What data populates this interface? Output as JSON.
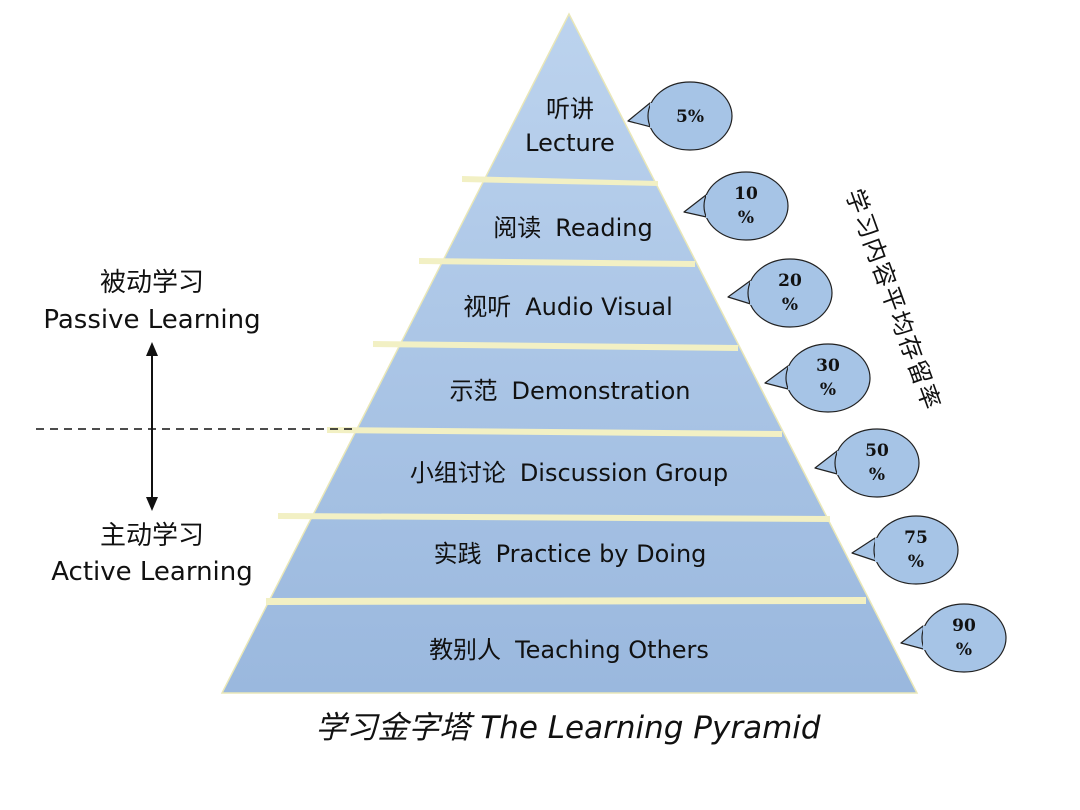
{
  "levels": [
    {
      "zh": "听讲",
      "en": "Lecture",
      "retention": "5%"
    },
    {
      "zh": "阅读",
      "en": "Reading",
      "retention": "10 %"
    },
    {
      "zh": "视听",
      "en": "Audio Visual",
      "retention": "20 %"
    },
    {
      "zh": "示范",
      "en": "Demonstration",
      "retention": "30 %"
    },
    {
      "zh": "小组讨论",
      "en": "Discussion Group",
      "retention": "50 %"
    },
    {
      "zh": "实践",
      "en": "Practice by Doing",
      "retention": "75 %"
    },
    {
      "zh": "教别人",
      "en": "Teaching Others",
      "retention": "90 %"
    }
  ],
  "side": {
    "passive_zh": "被动学习",
    "passive_en": "Passive Learning",
    "active_zh": "主动学习",
    "active_en": "Active Learning"
  },
  "retention_axis_label": "学习内容平均存留率",
  "title": "学习金字塔  The Learning Pyramid",
  "colors": {
    "pyramid_fill": "#a9c4e4",
    "band_separator": "#f2f0c4",
    "bubble_fill": "#a6c4e6",
    "text": "#111111"
  }
}
